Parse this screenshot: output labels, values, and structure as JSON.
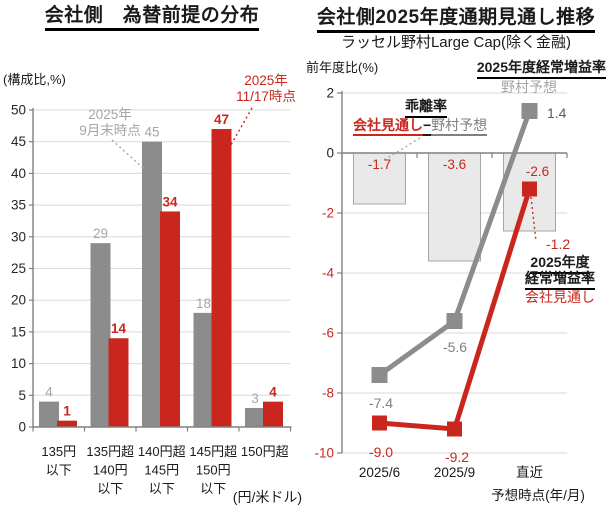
{
  "colors": {
    "red": "#C9271E",
    "gray_series": "#8C8C8C",
    "gray_value_label": "#A6A6A6",
    "gray_text": "#808080",
    "dark_value_label": "#595959",
    "bar_fill_light": "#E9E9E9",
    "bar_border": "#A6A6A6",
    "grid": "#D9D9D9",
    "axis": "#808080",
    "tick_text": "#262626"
  },
  "left_panel": {
    "title": "会社側　為替前提の分布",
    "y_unit": "(構成比,%)",
    "x_unit": "(円/米ドル)",
    "callout_sep": {
      "line1": "2025年",
      "line2": "9月末時点"
    },
    "callout_nov": {
      "line1": "2025年",
      "line2": "11/17時点"
    }
  },
  "right_panel": {
    "title": "会社側2025年度通期見通し推移",
    "subtitle": "ラッセル野村Large Cap(除く金融)",
    "y_unit": "前年度比(%)",
    "header": "2025年度経常増益率",
    "nomura_label": "野村予想",
    "kairi_title": "乖離率",
    "formula": {
      "company": "会社見通し",
      "minus": "−",
      "nomura": "野村予想"
    },
    "latest_annot": {
      "line1": "2025年度",
      "line2": "経常増益率",
      "company": "会社見通し"
    }
  },
  "chart_data": [
    {
      "type": "bar",
      "title": "会社側　為替前提の分布",
      "ylabel": "(構成比,%)",
      "xlabel": "(円/米ドル)",
      "categories": [
        "135円以下",
        "135円超140円以下",
        "140円超145円以下",
        "145円超150円以下",
        "150円超"
      ],
      "category_lines": [
        [
          "135円",
          "以下"
        ],
        [
          "135円超",
          "140円",
          "以下"
        ],
        [
          "140円超",
          "145円",
          "以下"
        ],
        [
          "145円超",
          "150円",
          "以下"
        ],
        [
          "150円超"
        ]
      ],
      "series": [
        {
          "name": "2025年9月末時点",
          "color": "#8C8C8C",
          "values": [
            4,
            29,
            45,
            18,
            3
          ]
        },
        {
          "name": "2025年11/17時点",
          "color": "#C9271E",
          "values": [
            1,
            14,
            34,
            47,
            4
          ]
        }
      ],
      "ylim": [
        0,
        50
      ],
      "ytick_step": 5,
      "grid": true,
      "legend_position": "annotated-callouts"
    },
    {
      "type": "bar+line",
      "title": "会社側2025年度通期見通し推移",
      "subtitle": "ラッセル野村Large Cap(除く金融)",
      "ylabel": "前年度比(%)",
      "xlabel": "予想時点(年/月)",
      "categories": [
        "2025/6",
        "2025/9",
        "直近"
      ],
      "bar_series": {
        "name": "乖離率 会社見通し−野村予想",
        "values": [
          -1.7,
          -3.6,
          -2.6
        ],
        "labels": [
          "-1.7",
          "-3.6",
          "-2.6"
        ]
      },
      "line_series": [
        {
          "name": "野村予想",
          "color": "#8C8C8C",
          "values": [
            -7.4,
            -5.6,
            1.4
          ],
          "labels": [
            "-7.4",
            "-5.6",
            "1.4"
          ]
        },
        {
          "name": "会社見通し",
          "color": "#C9271E",
          "values": [
            -9.0,
            -9.2,
            -1.2
          ],
          "labels": [
            "-9.0",
            "-9.2",
            "-1.2"
          ]
        }
      ],
      "ylim": [
        -10,
        2
      ],
      "ytick_step": 2,
      "grid": true,
      "negative_tick_color": "#C9271E"
    }
  ]
}
